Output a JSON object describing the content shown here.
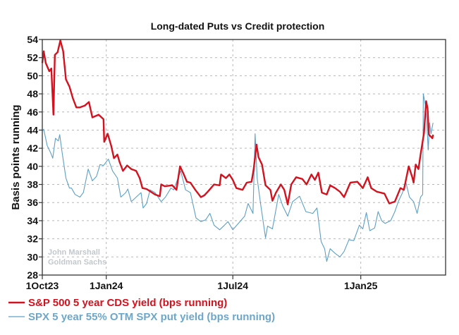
{
  "chart_data": {
    "type": "line",
    "title": "Long-dated Puts vs Credit protection",
    "xlabel": "",
    "ylabel": "Basis points running",
    "x_unit": "days since 1Oct23",
    "xlim": [
      0,
      580
    ],
    "ylim": [
      28,
      54
    ],
    "yticks": [
      28,
      30,
      32,
      34,
      36,
      38,
      40,
      42,
      44,
      46,
      48,
      50,
      52,
      54
    ],
    "xticks": [
      {
        "label": "1Oct23",
        "value": 0
      },
      {
        "label": "1Jan24",
        "value": 92
      },
      {
        "label": "1Jul24",
        "value": 274
      },
      {
        "label": "1Jan25",
        "value": 458
      }
    ],
    "grid": true,
    "legend_position": "bottom-left",
    "watermark": [
      "John Marshall",
      "Goldman Sachs"
    ],
    "series": [
      {
        "name": "S&P 500 5 year CDS yield (bps running)",
        "color": "#d2121f",
        "x": [
          0,
          2,
          5,
          10,
          13,
          16,
          18,
          22,
          26,
          30,
          34,
          39,
          44,
          49,
          54,
          61,
          67,
          72,
          81,
          88,
          89,
          94,
          99,
          103,
          108,
          111,
          116,
          122,
          128,
          135,
          140,
          144,
          150,
          162,
          169,
          171,
          176,
          187,
          193,
          198,
          203,
          208,
          213,
          220,
          228,
          233,
          238,
          247,
          255,
          257,
          264,
          269,
          274,
          279,
          288,
          294,
          301,
          304,
          308,
          311,
          316,
          321,
          328,
          331,
          336,
          343,
          348,
          353,
          358,
          365,
          374,
          380,
          387,
          392,
          397,
          402,
          409,
          414,
          421,
          428,
          434,
          443,
          453,
          461,
          468,
          473,
          481,
          492,
          499,
          507,
          515,
          520,
          527,
          532,
          534,
          537,
          541,
          544,
          549,
          552,
          554,
          556,
          561,
          562
        ],
        "y": [
          51.4,
          52.7,
          51.4,
          50.5,
          50.8,
          45.7,
          52.3,
          52.6,
          53.9,
          52.7,
          49.6,
          48.8,
          47.5,
          46.5,
          46.5,
          46.7,
          47.1,
          45.4,
          45.7,
          45.2,
          42.7,
          43.6,
          42.3,
          40.9,
          41.3,
          40.5,
          39.5,
          40.1,
          39.7,
          39.5,
          38.7,
          37.6,
          37.5,
          36.9,
          36.7,
          38.0,
          37.8,
          37.9,
          37.4,
          40.0,
          39.2,
          38.3,
          38.2,
          37.4,
          36.6,
          36.8,
          37.2,
          38.0,
          37.9,
          39.1,
          38.7,
          39.1,
          38.5,
          37.6,
          37.4,
          38.2,
          38.3,
          39.7,
          42.4,
          41.0,
          40.2,
          37.9,
          37.4,
          36.2,
          37.1,
          38.0,
          37.4,
          35.8,
          38.0,
          38.8,
          38.6,
          38.0,
          39.1,
          38.5,
          39.3,
          37.1,
          36.9,
          37.9,
          37.6,
          37.2,
          36.6,
          38.2,
          38.3,
          37.6,
          38.8,
          37.6,
          37.2,
          37.0,
          35.9,
          36.1,
          37.6,
          37.4,
          40.0,
          38.8,
          38.2,
          40.2,
          39.7,
          41.3,
          43.7,
          47.2,
          46.4,
          43.5,
          43.1,
          43.5
        ]
      },
      {
        "name": "SPX 5 year 55% OTM SPX put yield (bps running)",
        "color": "#5f9fc2",
        "x": [
          0,
          2,
          7,
          12,
          15,
          19,
          23,
          25,
          28,
          34,
          39,
          42,
          47,
          54,
          59,
          66,
          72,
          78,
          83,
          88,
          95,
          101,
          108,
          113,
          120,
          123,
          128,
          135,
          142,
          145,
          150,
          155,
          162,
          171,
          177,
          185,
          189,
          196,
          199,
          206,
          213,
          221,
          228,
          235,
          241,
          247,
          255,
          262,
          267,
          274,
          282,
          291,
          296,
          303,
          306,
          309,
          314,
          321,
          324,
          331,
          340,
          346,
          353,
          360,
          370,
          379,
          389,
          395,
          401,
          406,
          409,
          414,
          421,
          428,
          434,
          441,
          448,
          456,
          461,
          466,
          471,
          478,
          483,
          488,
          493,
          501,
          507,
          512,
          518,
          523,
          528,
          534,
          539,
          544,
          547,
          548,
          551,
          553,
          555,
          557,
          559,
          562
        ],
        "y": [
          43.9,
          44.1,
          42.3,
          41.5,
          40.9,
          43.1,
          42.8,
          43.5,
          41.8,
          38.7,
          37.6,
          37.6,
          36.9,
          36.6,
          37.1,
          39.7,
          38.4,
          38.9,
          40.2,
          40.1,
          40.8,
          39.5,
          38.7,
          36.6,
          37.1,
          37.5,
          36.1,
          36.6,
          37.1,
          35.4,
          35.9,
          37.4,
          37.1,
          36.1,
          36.6,
          37.6,
          37.4,
          38.9,
          39.5,
          37.4,
          37.1,
          34.3,
          33.9,
          34.1,
          34.8,
          33.5,
          33.0,
          33.5,
          33.9,
          33.0,
          33.7,
          34.5,
          35.9,
          34.8,
          43.6,
          38.7,
          35.8,
          32.1,
          33.4,
          33.1,
          36.9,
          35.6,
          34.5,
          36.1,
          36.7,
          35.0,
          34.8,
          35.4,
          31.7,
          30.9,
          29.5,
          30.9,
          30.4,
          30.0,
          30.6,
          31.9,
          31.8,
          33.5,
          33.1,
          34.9,
          32.9,
          33.2,
          35.0,
          34.0,
          33.7,
          34.0,
          35.0,
          36.1,
          37.1,
          38.2,
          36.6,
          36.1,
          34.8,
          36.6,
          36.9,
          48.0,
          46.7,
          44.9,
          41.8,
          44.8,
          43.6,
          44.8
        ]
      }
    ]
  }
}
